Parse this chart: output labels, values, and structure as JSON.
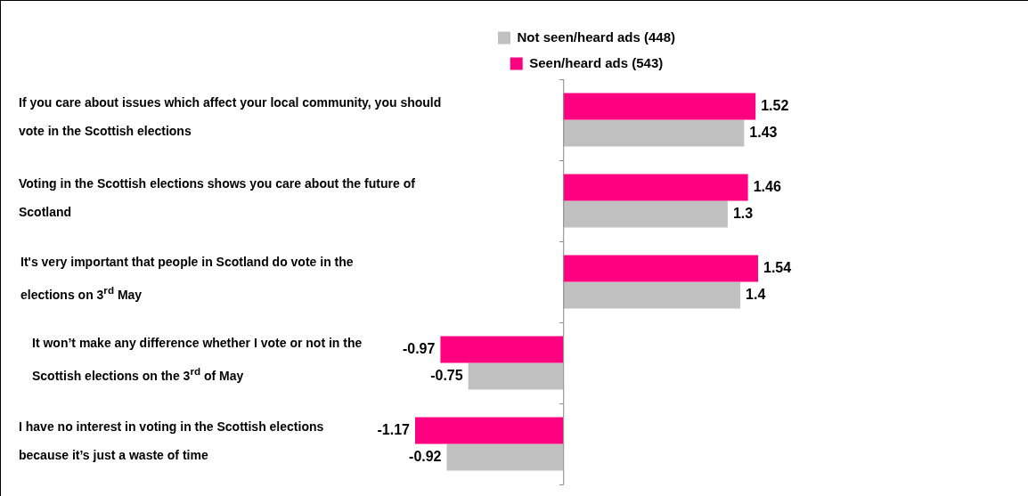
{
  "chart_data": {
    "type": "bar",
    "orientation": "horizontal",
    "data_labels": true,
    "legend": "top",
    "categories": [
      "If you care about issues which affect your local community, you should vote in the Scottish elections",
      "Voting in the Scottish elections shows you care about the future of Scotland",
      "It's very important that people in Scotland do vote in the elections on 3$^{rd}$ May",
      "It won’t make any difference whether I vote or not in the Scottish elections on the 3$^{rd}$ of May",
      "I have no interest in voting in the Scottish elections because it’s just a waste of time"
    ],
    "series": [
      {
        "name": "Not seen/heard ads (448)",
        "color": "#c0c0c0",
        "values": [
          1.43,
          1.3,
          1.4,
          -0.75,
          -0.92
        ]
      },
      {
        "name": "Seen/heard ads (543)",
        "color": "#ff0080",
        "values": [
          1.52,
          1.46,
          1.54,
          -0.97,
          -1.17
        ]
      }
    ]
  }
}
